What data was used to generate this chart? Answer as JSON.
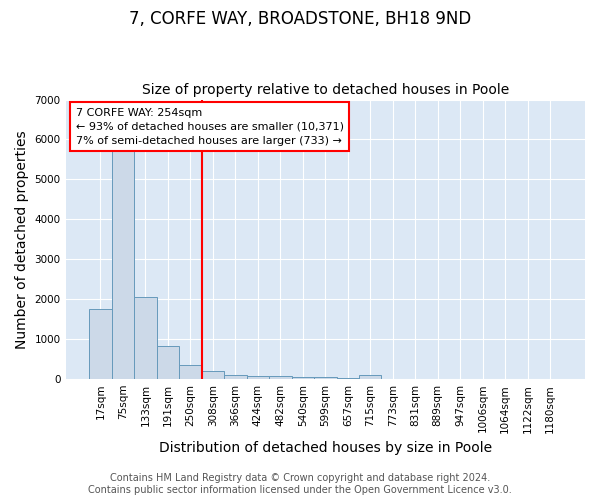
{
  "title": "7, CORFE WAY, BROADSTONE, BH18 9ND",
  "subtitle": "Size of property relative to detached houses in Poole",
  "xlabel": "Distribution of detached houses by size in Poole",
  "ylabel": "Number of detached properties",
  "categories": [
    "17sqm",
    "75sqm",
    "133sqm",
    "191sqm",
    "250sqm",
    "308sqm",
    "366sqm",
    "424sqm",
    "482sqm",
    "540sqm",
    "599sqm",
    "657sqm",
    "715sqm",
    "773sqm",
    "831sqm",
    "889sqm",
    "947sqm",
    "1006sqm",
    "1064sqm",
    "1122sqm",
    "1180sqm"
  ],
  "values": [
    1750,
    5750,
    2050,
    825,
    350,
    200,
    105,
    75,
    70,
    55,
    50,
    30,
    100,
    0,
    0,
    0,
    0,
    0,
    0,
    0,
    0
  ],
  "bar_color": "#ccd9e8",
  "bar_edge_color": "#6699bb",
  "red_line_index": 4,
  "annotation_line1": "7 CORFE WAY: 254sqm",
  "annotation_line2": "← 93% of detached houses are smaller (10,371)",
  "annotation_line3": "7% of semi-detached houses are larger (733) →",
  "ylim": [
    0,
    7000
  ],
  "background_color": "#ffffff",
  "plot_bg_color": "#dce8f5",
  "grid_color": "#ffffff",
  "footer_line1": "Contains HM Land Registry data © Crown copyright and database right 2024.",
  "footer_line2": "Contains public sector information licensed under the Open Government Licence v3.0.",
  "title_fontsize": 12,
  "subtitle_fontsize": 10,
  "axis_label_fontsize": 10,
  "tick_fontsize": 7.5,
  "annotation_fontsize": 8,
  "footer_fontsize": 7
}
